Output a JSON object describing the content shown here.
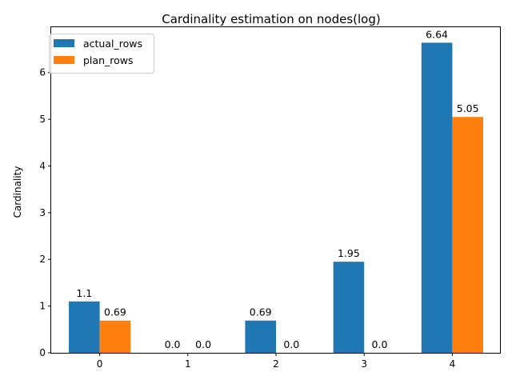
{
  "chart_data": {
    "type": "bar",
    "title": "Cardinality estimation on nodes(log)",
    "xlabel": "",
    "ylabel": "Cardinality",
    "categories": [
      "0",
      "1",
      "2",
      "3",
      "4"
    ],
    "series": [
      {
        "name": "actual_rows",
        "color": "#1f77b4",
        "values": [
          1.1,
          0.0,
          0.69,
          1.95,
          6.64
        ],
        "labels": [
          "1.1",
          "0.0",
          "0.69",
          "1.95",
          "6.64"
        ]
      },
      {
        "name": "plan_rows",
        "color": "#ff7f0e",
        "values": [
          0.69,
          0.0,
          0.0,
          0.0,
          5.05
        ],
        "labels": [
          "0.69",
          "0.0",
          "0.0",
          "0.0",
          "5.05"
        ]
      }
    ],
    "ylim": [
      0,
      6.972
    ],
    "yticks": [
      "0",
      "1",
      "2",
      "3",
      "4",
      "5",
      "6"
    ],
    "grid": false,
    "legend": "top-left"
  }
}
